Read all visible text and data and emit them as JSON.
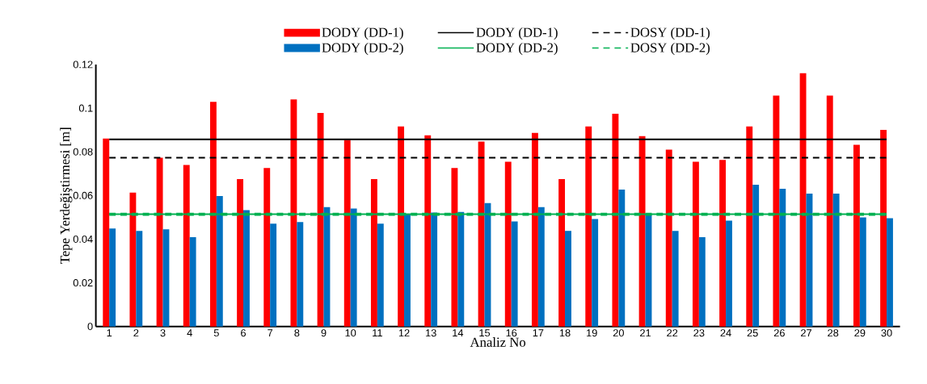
{
  "chart_data": {
    "type": "bar",
    "xlabel": "Analiz No",
    "ylabel": "Tepe Yerdeğiştirmesi [m]",
    "categories": [
      "1",
      "2",
      "3",
      "4",
      "5",
      "6",
      "7",
      "8",
      "9",
      "10",
      "11",
      "12",
      "13",
      "14",
      "15",
      "16",
      "17",
      "18",
      "19",
      "20",
      "21",
      "22",
      "23",
      "24",
      "25",
      "26",
      "27",
      "28",
      "29",
      "30"
    ],
    "ylim": [
      0,
      0.12
    ],
    "yticks": [
      0,
      0.02,
      0.04,
      0.06,
      0.08,
      0.1,
      0.12
    ],
    "legend": "top",
    "series": [
      {
        "name": "DODY (DD-1)",
        "color": "#ff0000",
        "values": [
          0.0861,
          0.0613,
          0.0773,
          0.074,
          0.1029,
          0.0675,
          0.0726,
          0.104,
          0.0978,
          0.0854,
          0.0675,
          0.0916,
          0.0876,
          0.0726,
          0.0847,
          0.0755,
          0.0887,
          0.0675,
          0.0916,
          0.0974,
          0.0872,
          0.081,
          0.0755,
          0.0763,
          0.0916,
          0.1058,
          0.116,
          0.1058,
          0.0832,
          0.0901
        ]
      },
      {
        "name": "DODY (DD-1)",
        "type": "line",
        "line_style": "solid",
        "color": "#000000",
        "values": [
          0.0857,
          0.0857,
          0.0857,
          0.0857,
          0.0857,
          0.0857,
          0.0857,
          0.0857,
          0.0857,
          0.0857,
          0.0857,
          0.0857,
          0.0857,
          0.0857,
          0.0857,
          0.0857,
          0.0857,
          0.0857,
          0.0857,
          0.0857,
          0.0857,
          0.0857,
          0.0857,
          0.0857,
          0.0857,
          0.0857,
          0.0857,
          0.0857,
          0.0857,
          0.0857
        ]
      },
      {
        "name": "DOSY (DD-1)",
        "type": "line",
        "line_style": "dashed",
        "color": "#000000",
        "values": [
          0.0773,
          0.0773,
          0.0773,
          0.0773,
          0.0773,
          0.0773,
          0.0773,
          0.0773,
          0.0773,
          0.0773,
          0.0773,
          0.0773,
          0.0773,
          0.0773,
          0.0773,
          0.0773,
          0.0773,
          0.0773,
          0.0773,
          0.0773,
          0.0773,
          0.0773,
          0.0773,
          0.0773,
          0.0773,
          0.0773,
          0.0773,
          0.0773,
          0.0773,
          0.0773
        ]
      },
      {
        "name": "DODY (DD-2)",
        "color": "#0070c0",
        "values": [
          0.0449,
          0.0438,
          0.0445,
          0.0409,
          0.0598,
          0.0533,
          0.0471,
          0.0478,
          0.0547,
          0.054,
          0.0471,
          0.0514,
          0.0522,
          0.0525,
          0.0565,
          0.0481,
          0.0547,
          0.0438,
          0.0492,
          0.0627,
          0.0514,
          0.0438,
          0.0409,
          0.0485,
          0.0649,
          0.0631,
          0.0609,
          0.0609,
          0.05,
          0.0496
        ]
      },
      {
        "name": "DODY (DD-2)",
        "type": "line",
        "line_style": "solid",
        "color": "#00b050",
        "values": [
          0.0514,
          0.0514,
          0.0514,
          0.0514,
          0.0514,
          0.0514,
          0.0514,
          0.0514,
          0.0514,
          0.0514,
          0.0514,
          0.0514,
          0.0514,
          0.0514,
          0.0514,
          0.0514,
          0.0514,
          0.0514,
          0.0514,
          0.0514,
          0.0514,
          0.0514,
          0.0514,
          0.0514,
          0.0514,
          0.0514,
          0.0514,
          0.0514,
          0.0514,
          0.0514
        ]
      },
      {
        "name": "DOSY (DD-2)",
        "type": "line",
        "line_style": "dashed",
        "color": "#00b050",
        "values": [
          0.0514,
          0.0514,
          0.0514,
          0.0514,
          0.0514,
          0.0514,
          0.0514,
          0.0514,
          0.0514,
          0.0514,
          0.0514,
          0.0514,
          0.0514,
          0.0514,
          0.0514,
          0.0514,
          0.0514,
          0.0514,
          0.0514,
          0.0514,
          0.0514,
          0.0514,
          0.0514,
          0.0514,
          0.0514,
          0.0514,
          0.0514,
          0.0514,
          0.0514,
          0.0514
        ]
      }
    ]
  }
}
